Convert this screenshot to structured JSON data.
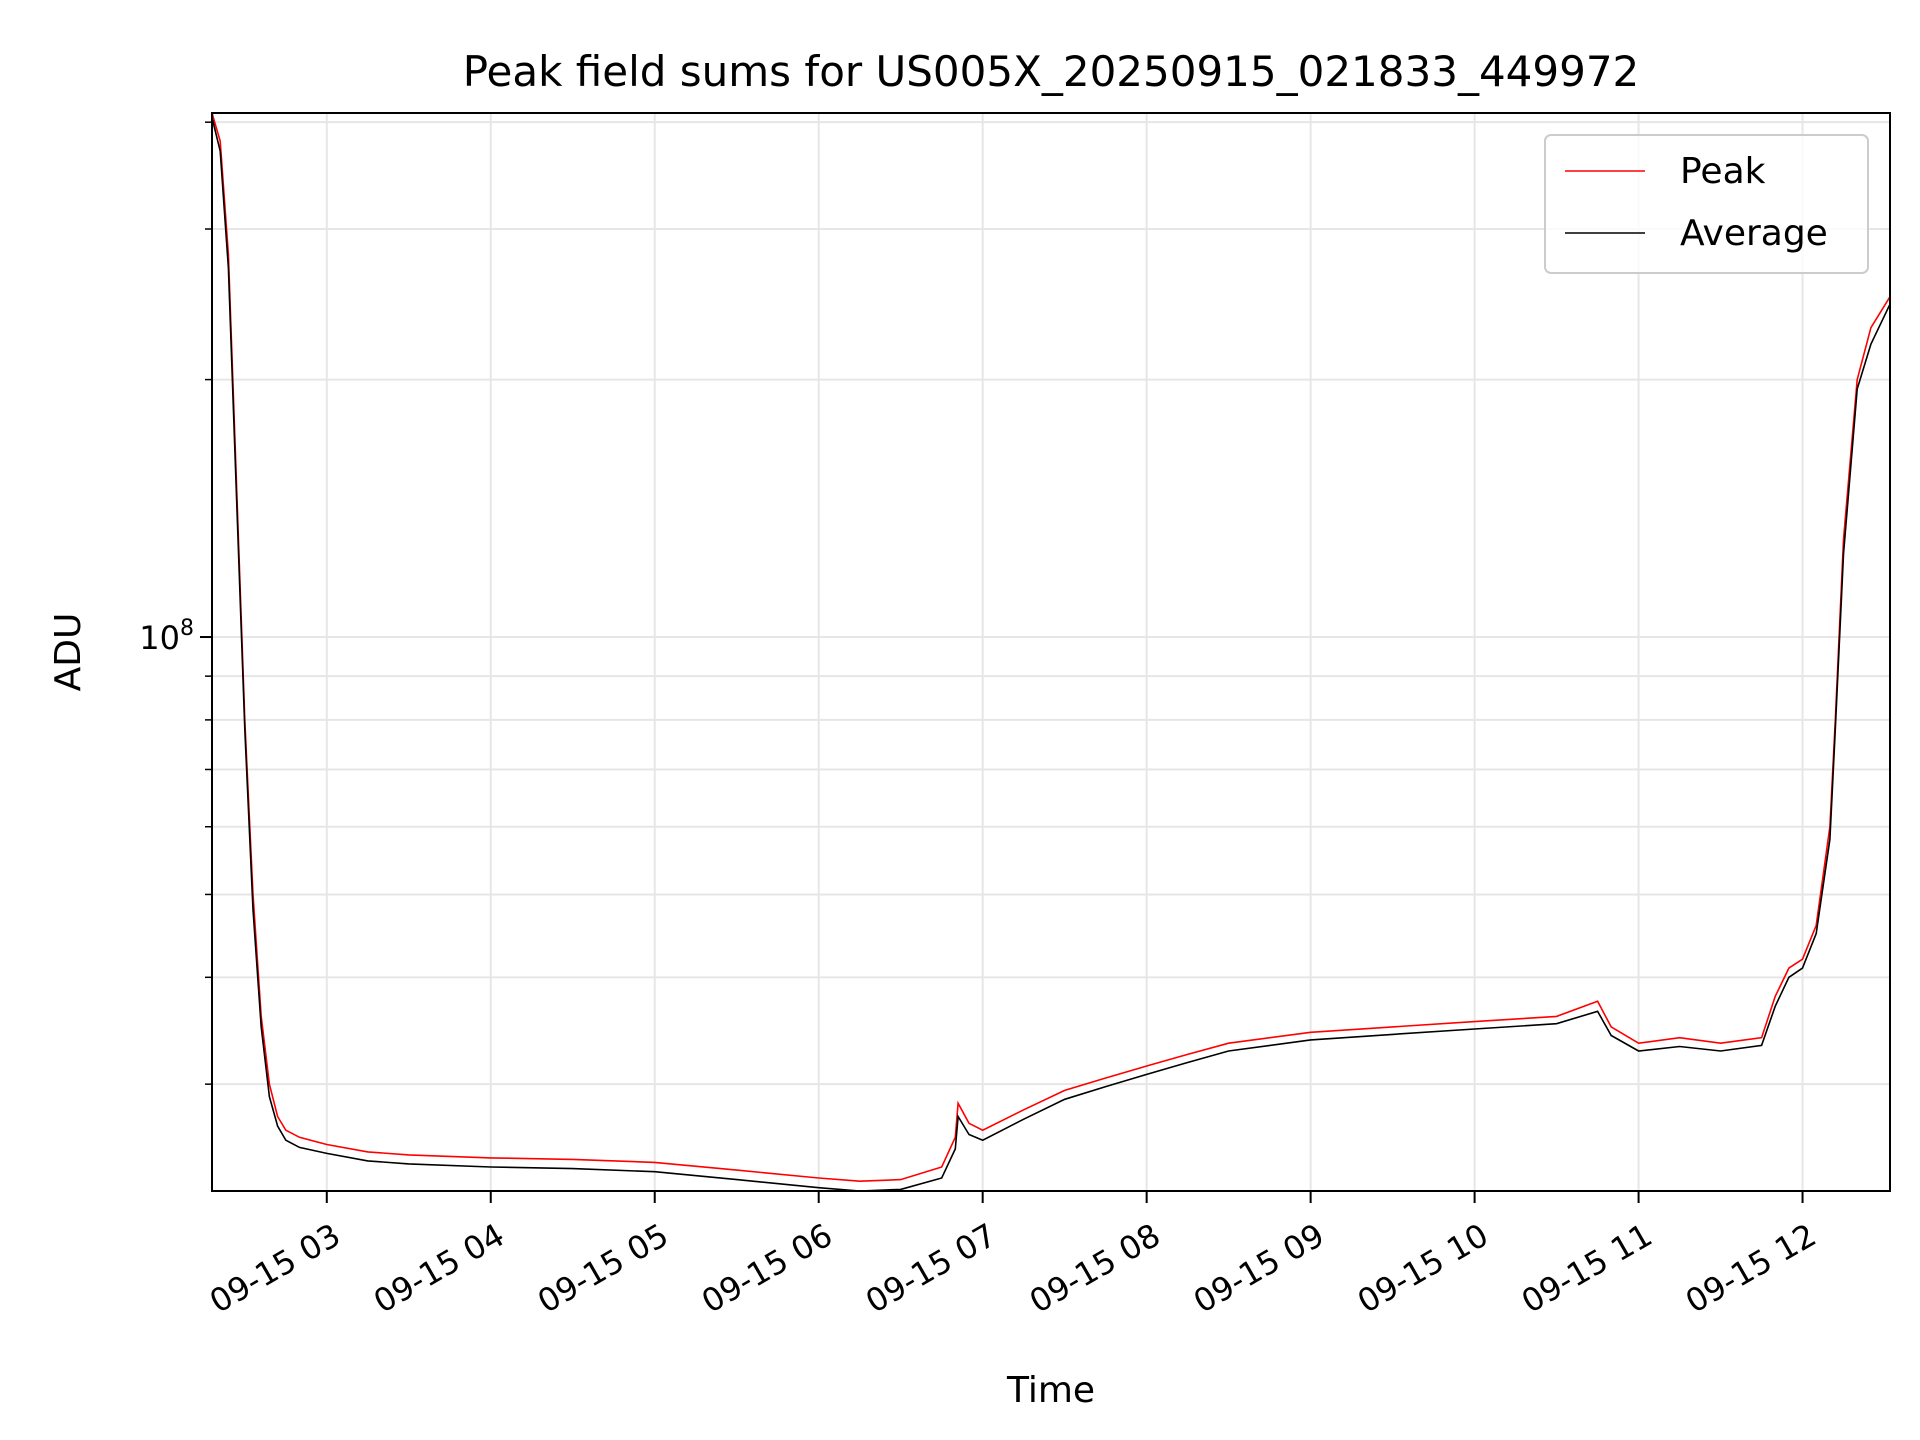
{
  "chart_data": {
    "type": "line",
    "title": "Peak field sums for US005X_20250915_021833_449972",
    "xlabel": "Time",
    "ylabel": "ADU",
    "y_scale": "log",
    "ylim": [
      22500000,
      410000000
    ],
    "xlim": [
      "09-15 02:18",
      "09-15 12:32"
    ],
    "grid": true,
    "legend_position": "top-right",
    "x_ticks": [
      "09-15 03",
      "09-15 04",
      "09-15 05",
      "09-15 06",
      "09-15 07",
      "09-15 08",
      "09-15 09",
      "09-15 10",
      "09-15 11",
      "09-15 12"
    ],
    "x_tick_times": [
      "09-15 03:00",
      "09-15 04:00",
      "09-15 05:00",
      "09-15 06:00",
      "09-15 07:00",
      "09-15 08:00",
      "09-15 09:00",
      "09-15 10:00",
      "09-15 11:00",
      "09-15 12:00"
    ],
    "y_major_tick": {
      "label_base": "10",
      "label_exp": "8",
      "value": 100000000
    },
    "y_minor_ticks": [
      30000000,
      40000000,
      50000000,
      60000000,
      70000000,
      80000000,
      90000000,
      200000000,
      300000000,
      400000000
    ],
    "series": [
      {
        "name": "Peak",
        "color": "#ff0000",
        "x": [
          "09-15 02:18",
          "09-15 02:21",
          "09-15 02:24",
          "09-15 02:27",
          "09-15 02:30",
          "09-15 02:33",
          "09-15 02:36",
          "09-15 02:39",
          "09-15 02:42",
          "09-15 02:45",
          "09-15 02:50",
          "09-15 03:00",
          "09-15 03:15",
          "09-15 03:30",
          "09-15 04:00",
          "09-15 04:30",
          "09-15 05:00",
          "09-15 05:30",
          "09-15 06:00",
          "09-15 06:15",
          "09-15 06:30",
          "09-15 06:45",
          "09-15 06:50",
          "09-15 06:51",
          "09-15 06:55",
          "09-15 07:00",
          "09-15 07:15",
          "09-15 07:30",
          "09-15 07:45",
          "09-15 08:00",
          "09-15 08:15",
          "09-15 08:30",
          "09-15 09:00",
          "09-15 09:30",
          "09-15 10:00",
          "09-15 10:30",
          "09-15 10:45",
          "09-15 10:50",
          "09-15 11:00",
          "09-15 11:15",
          "09-15 11:30",
          "09-15 11:45",
          "09-15 11:50",
          "09-15 11:55",
          "09-15 12:00",
          "09-15 12:05",
          "09-15 12:10",
          "09-15 12:12",
          "09-15 12:15",
          "09-15 12:20",
          "09-15 12:25",
          "09-15 12:32"
        ],
        "y": [
          410000000,
          380000000,
          280000000,
          150000000,
          80000000,
          50000000,
          36000000,
          30000000,
          27500000,
          26500000,
          26000000,
          25500000,
          25000000,
          24800000,
          24600000,
          24500000,
          24300000,
          23800000,
          23300000,
          23100000,
          23200000,
          24000000,
          26000000,
          28500000,
          27000000,
          26500000,
          28000000,
          29500000,
          30500000,
          31500000,
          32500000,
          33500000,
          34500000,
          35000000,
          35500000,
          36000000,
          37500000,
          35000000,
          33500000,
          34000000,
          33500000,
          34000000,
          38000000,
          41000000,
          42000000,
          46000000,
          60000000,
          80000000,
          130000000,
          200000000,
          230000000,
          250000000
        ]
      },
      {
        "name": "Average",
        "color": "#000000",
        "x": [
          "09-15 02:18",
          "09-15 02:21",
          "09-15 02:24",
          "09-15 02:27",
          "09-15 02:30",
          "09-15 02:33",
          "09-15 02:36",
          "09-15 02:39",
          "09-15 02:42",
          "09-15 02:45",
          "09-15 02:50",
          "09-15 03:00",
          "09-15 03:15",
          "09-15 03:30",
          "09-15 04:00",
          "09-15 04:30",
          "09-15 05:00",
          "09-15 05:30",
          "09-15 06:00",
          "09-15 06:15",
          "09-15 06:30",
          "09-15 06:45",
          "09-15 06:50",
          "09-15 06:51",
          "09-15 06:55",
          "09-15 07:00",
          "09-15 07:15",
          "09-15 07:30",
          "09-15 07:45",
          "09-15 08:00",
          "09-15 08:15",
          "09-15 08:30",
          "09-15 09:00",
          "09-15 09:30",
          "09-15 10:00",
          "09-15 10:30",
          "09-15 10:45",
          "09-15 10:50",
          "09-15 11:00",
          "09-15 11:15",
          "09-15 11:30",
          "09-15 11:45",
          "09-15 11:50",
          "09-15 11:55",
          "09-15 12:00",
          "09-15 12:05",
          "09-15 12:10",
          "09-15 12:12",
          "09-15 12:15",
          "09-15 12:20",
          "09-15 12:25",
          "09-15 12:32"
        ],
        "y": [
          405000000,
          370000000,
          270000000,
          145000000,
          78000000,
          48000000,
          35000000,
          29000000,
          26800000,
          25800000,
          25300000,
          24900000,
          24400000,
          24200000,
          24000000,
          23900000,
          23700000,
          23200000,
          22700000,
          22500000,
          22600000,
          23300000,
          25200000,
          27500000,
          26200000,
          25800000,
          27300000,
          28800000,
          29800000,
          30800000,
          31800000,
          32800000,
          33800000,
          34300000,
          34800000,
          35300000,
          36500000,
          34200000,
          32800000,
          33200000,
          32800000,
          33300000,
          37000000,
          40000000,
          41000000,
          45000000,
          58000000,
          78000000,
          125000000,
          195000000,
          220000000,
          245000000
        ]
      }
    ]
  }
}
